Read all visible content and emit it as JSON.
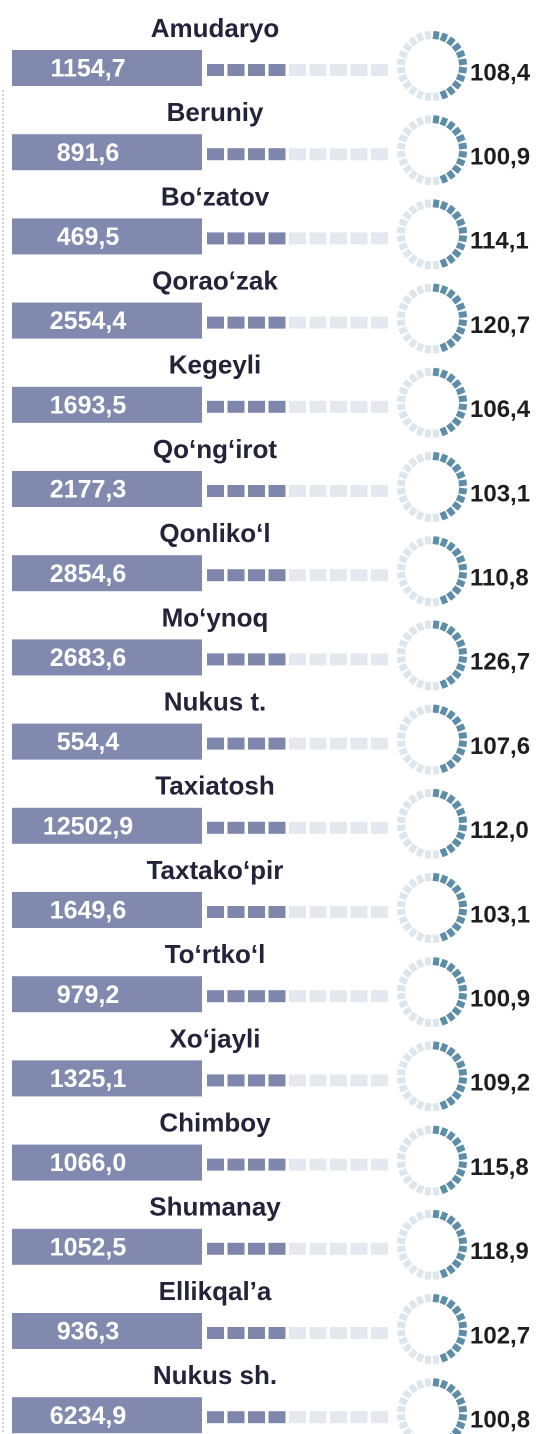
{
  "rows": [
    {
      "name": "Amudaryo",
      "value": "1154,7",
      "percent": "108,4"
    },
    {
      "name": "Beruniy",
      "value": "891,6",
      "percent": "100,9"
    },
    {
      "name": "Bo‘zatov",
      "value": "469,5",
      "percent": "114,1"
    },
    {
      "name": "Qorao‘zak",
      "value": "2554,4",
      "percent": "120,7"
    },
    {
      "name": "Kegeyli",
      "value": "1693,5",
      "percent": "106,4"
    },
    {
      "name": "Qo‘ng‘irot",
      "value": "2177,3",
      "percent": "103,1"
    },
    {
      "name": "Qonliko‘l",
      "value": "2854,6",
      "percent": "110,8"
    },
    {
      "name": "Mo‘ynoq",
      "value": "2683,6",
      "percent": "126,7"
    },
    {
      "name": "Nukus t.",
      "value": "554,4",
      "percent": "107,6"
    },
    {
      "name": "Taxiatosh",
      "value": "12502,9",
      "percent": "112,0"
    },
    {
      "name": "Taxtako‘pir",
      "value": "1649,6",
      "percent": "103,1"
    },
    {
      "name": "To‘rtko‘l",
      "value": "979,2",
      "percent": "100,9"
    },
    {
      "name": "Xo‘jayli",
      "value": "1325,1",
      "percent": "109,2"
    },
    {
      "name": "Chimboy",
      "value": "1066,0",
      "percent": "115,8"
    },
    {
      "name": "Shumanay",
      "value": "1052,5",
      "percent": "118,9"
    },
    {
      "name": "Ellikqal’a",
      "value": "936,3",
      "percent": "102,7"
    },
    {
      "name": "Nukus sh.",
      "value": "6234,9",
      "percent": "100,8"
    }
  ]
}
